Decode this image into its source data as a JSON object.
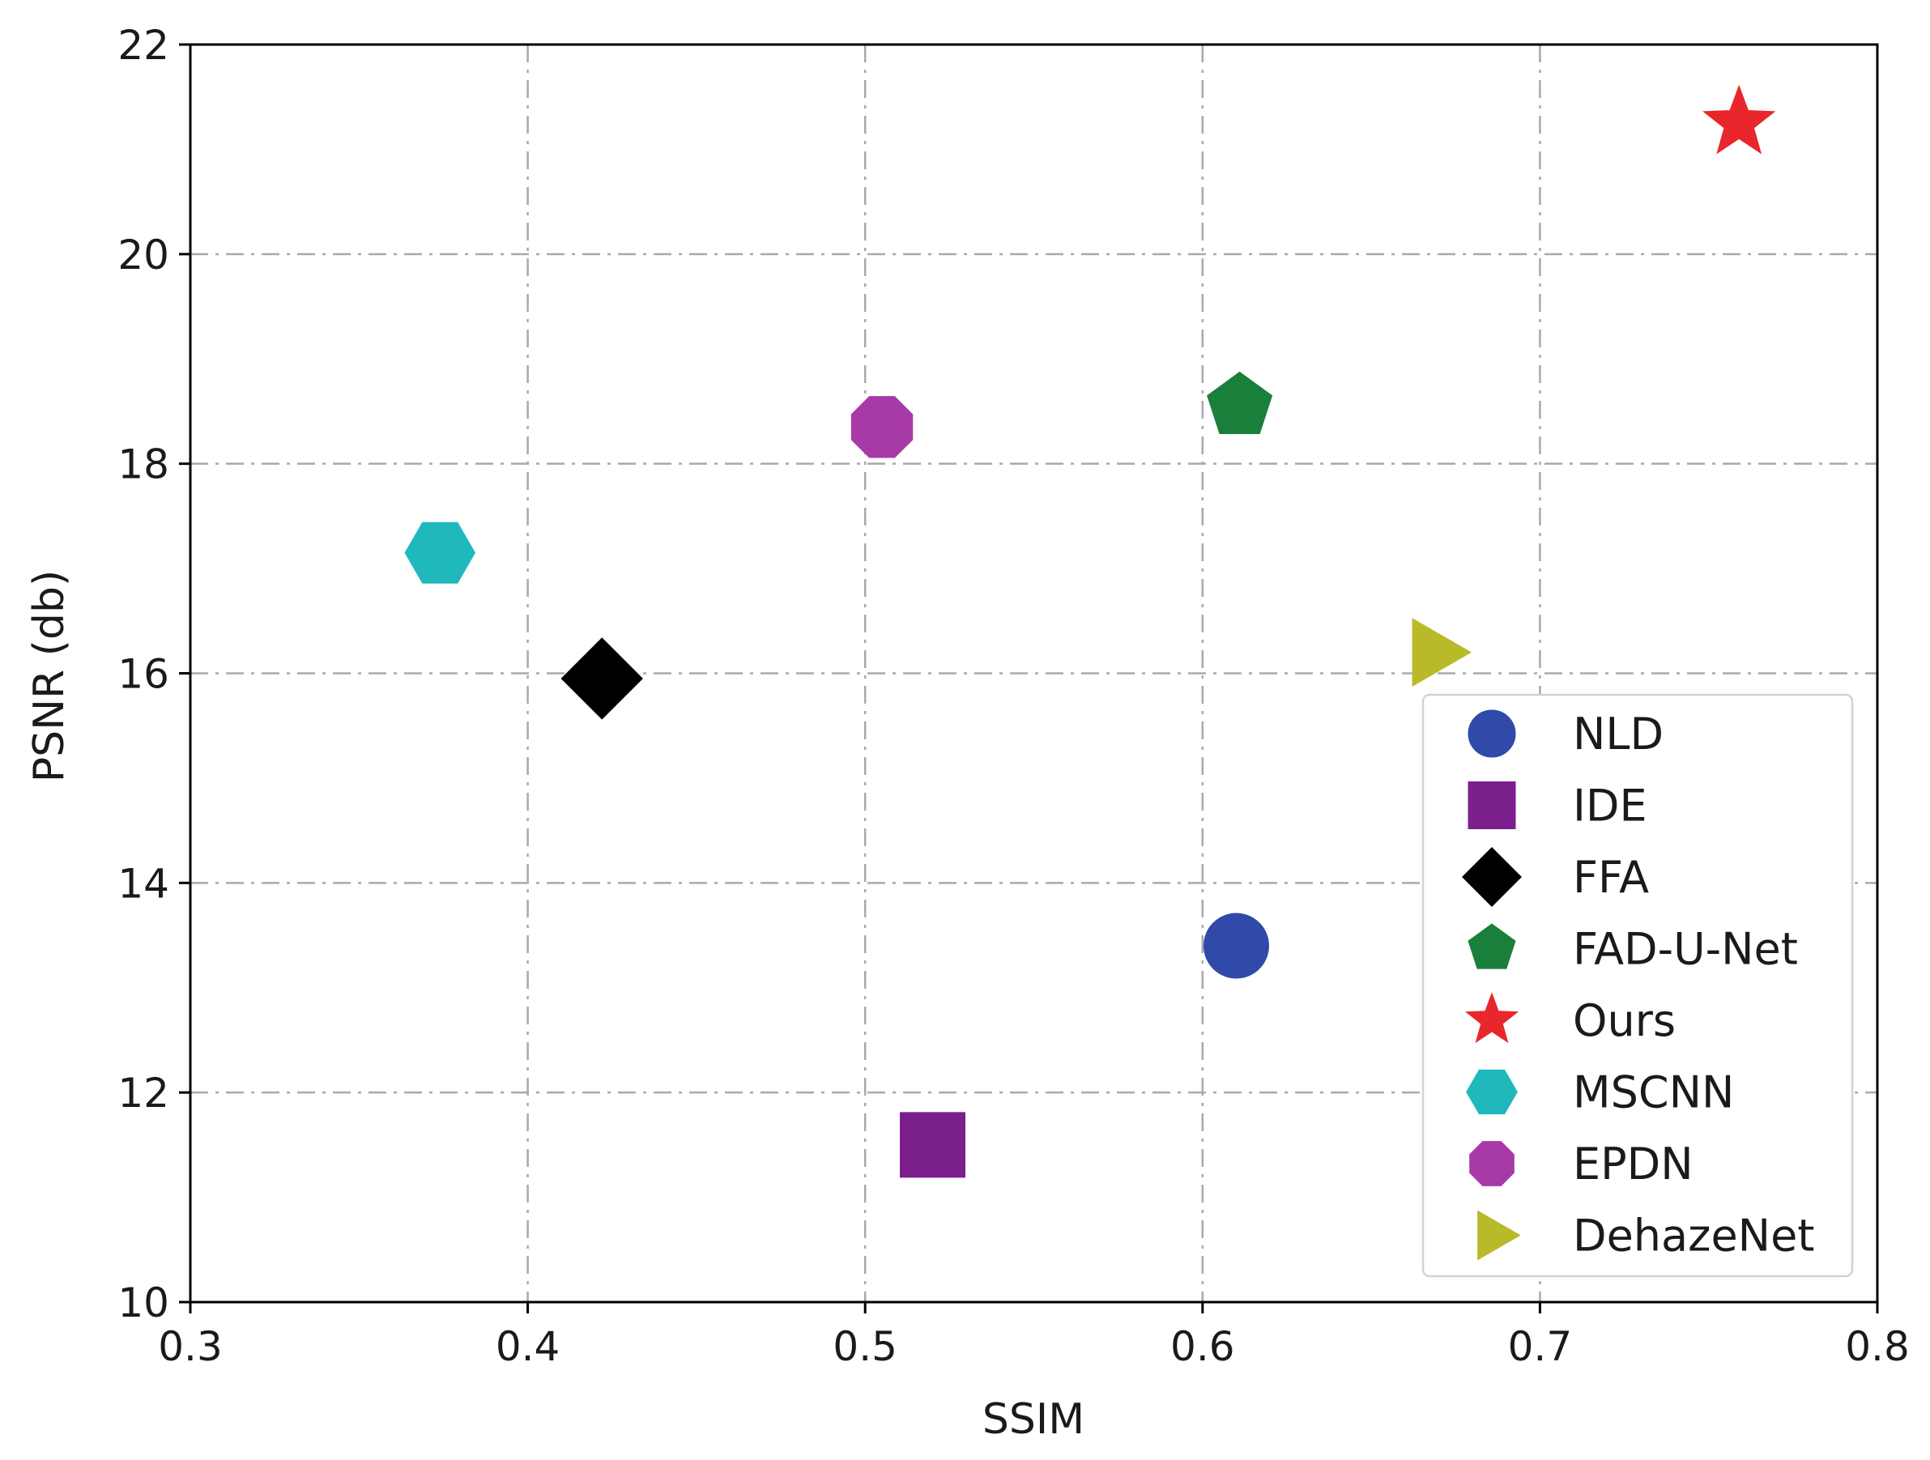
{
  "chart_data": {
    "type": "scatter",
    "title": "",
    "xlabel": "SSIM",
    "ylabel": "PSNR (db)",
    "xlim": [
      0.3,
      0.8
    ],
    "ylim": [
      10,
      22
    ],
    "xticks": [
      0.3,
      0.4,
      0.5,
      0.6,
      0.7,
      0.8
    ],
    "xtick_labels": [
      "0.3",
      "0.4",
      "0.5",
      "0.6",
      "0.7",
      "0.8"
    ],
    "yticks": [
      10,
      12,
      14,
      16,
      18,
      20,
      22
    ],
    "ytick_labels": [
      "10",
      "12",
      "14",
      "16",
      "18",
      "20",
      "22"
    ],
    "grid": true,
    "legend_position": "lower-right",
    "series": [
      {
        "name": "NLD",
        "marker": "circle",
        "color": "#2f4aa8",
        "x": [
          0.61
        ],
        "y": [
          13.4
        ]
      },
      {
        "name": "IDE",
        "marker": "square",
        "color": "#7b1f8c",
        "x": [
          0.52
        ],
        "y": [
          11.5
        ]
      },
      {
        "name": "FFA",
        "marker": "diamond",
        "color": "#000000",
        "x": [
          0.422
        ],
        "y": [
          15.95
        ]
      },
      {
        "name": "FAD-U-Net",
        "marker": "pentagon",
        "color": "#1a7f3a",
        "x": [
          0.611
        ],
        "y": [
          18.55
        ]
      },
      {
        "name": "Ours",
        "marker": "star",
        "color": "#e8262b",
        "x": [
          0.759
        ],
        "y": [
          21.25
        ]
      },
      {
        "name": "MSCNN",
        "marker": "hexagon",
        "color": "#1fb8bd",
        "x": [
          0.374
        ],
        "y": [
          17.15
        ]
      },
      {
        "name": "EPDN",
        "marker": "octagon",
        "color": "#a83aa8",
        "x": [
          0.505
        ],
        "y": [
          18.35
        ]
      },
      {
        "name": "DehazeNet",
        "marker": "triangle-right",
        "color": "#b8ba2a",
        "x": [
          0.668
        ],
        "y": [
          16.2
        ]
      }
    ]
  }
}
